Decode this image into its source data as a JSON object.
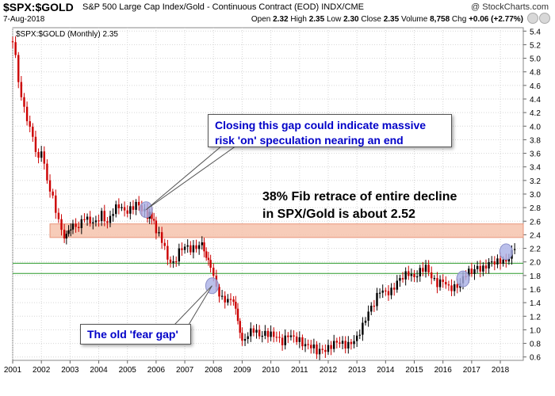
{
  "header": {
    "symbol": "$SPX:$GOLD",
    "description": "S&P 500 Large Cap Index/Gold - Continuous Contract (EOD)  INDX/CME",
    "date": "7-Aug-2018",
    "open_label": "Open",
    "open": "2.32",
    "high_label": "High",
    "high": "2.35",
    "low_label": "Low",
    "low": "2.30",
    "close_label": "Close",
    "close": "2.35",
    "volume_label": "Volume",
    "volume": "8,758",
    "chg_label": "Chg",
    "chg": "+0.06 (+2.77%)",
    "brand": "@ StockCharts.com",
    "icons": [
      "zoom-icon",
      "settings-icon"
    ]
  },
  "chart_data": {
    "type": "line",
    "legend": "$SPX:$GOLD (Monthly) 2.35",
    "ylim": [
      0.55,
      5.45
    ],
    "y_ticks": [
      "5.4",
      "5.2",
      "5.0",
      "4.8",
      "4.6",
      "4.4",
      "4.2",
      "4.0",
      "3.8",
      "3.6",
      "3.4",
      "3.2",
      "3.0",
      "2.8",
      "2.6",
      "2.4",
      "2.2",
      "2.0",
      "1.8",
      "1.6",
      "1.4",
      "1.2",
      "1.0",
      "0.8",
      "0.6"
    ],
    "x_ticks": [
      "2001",
      "2002",
      "2003",
      "2004",
      "2005",
      "2006",
      "2007",
      "2008",
      "2009",
      "2010",
      "2011",
      "2012",
      "2013",
      "2014",
      "2015",
      "2016",
      "2017",
      "2018"
    ],
    "x_range": [
      2001.0,
      2018.8
    ],
    "series": [
      {
        "x": [
          2001.0,
          2001.1,
          2001.2,
          2001.3,
          2001.4,
          2001.5,
          2001.7,
          2001.9,
          2002.0,
          2002.2,
          2002.4,
          2002.6,
          2002.8,
          2002.95,
          2003.1,
          2003.3,
          2003.5,
          2003.7,
          2003.9,
          2004.1,
          2004.3,
          2004.5,
          2004.7,
          2004.9,
          2005.1,
          2005.3,
          2005.5,
          2005.7,
          2005.85,
          2006.0,
          2006.2,
          2006.4,
          2006.6,
          2006.8,
          2007.0,
          2007.2,
          2007.4,
          2007.6,
          2007.75,
          2007.9,
          2008.1,
          2008.3,
          2008.5,
          2008.7,
          2008.85,
          2009.0,
          2009.2,
          2009.4,
          2009.6,
          2009.8,
          2010.0,
          2010.2,
          2010.4,
          2010.6,
          2010.8,
          2011.0,
          2011.2,
          2011.4,
          2011.6,
          2011.8,
          2012.0,
          2012.2,
          2012.4,
          2012.6,
          2012.8,
          2013.0,
          2013.2,
          2013.4,
          2013.6,
          2013.8,
          2014.0,
          2014.2,
          2014.4,
          2014.6,
          2014.8,
          2015.0,
          2015.2,
          2015.4,
          2015.6,
          2015.8,
          2016.0,
          2016.2,
          2016.4,
          2016.6,
          2016.8,
          2017.0,
          2017.2,
          2017.4,
          2017.6,
          2017.8,
          2018.0,
          2018.2,
          2018.4,
          2018.6
        ],
        "y": [
          5.25,
          5.05,
          4.65,
          4.5,
          4.25,
          4.1,
          3.8,
          3.5,
          3.7,
          3.2,
          2.9,
          2.6,
          2.4,
          2.45,
          2.5,
          2.5,
          2.7,
          2.6,
          2.55,
          2.7,
          2.6,
          2.75,
          2.8,
          2.75,
          2.8,
          2.85,
          2.75,
          2.7,
          2.65,
          2.45,
          2.3,
          2.05,
          2.0,
          2.15,
          2.2,
          2.2,
          2.25,
          2.25,
          2.1,
          1.95,
          1.65,
          1.45,
          1.4,
          1.45,
          1.1,
          0.82,
          0.9,
          1.0,
          0.95,
          0.95,
          0.9,
          0.9,
          0.85,
          0.92,
          0.85,
          0.85,
          0.8,
          0.75,
          0.66,
          0.72,
          0.75,
          0.78,
          0.8,
          0.8,
          0.82,
          0.85,
          1.05,
          1.3,
          1.4,
          1.55,
          1.55,
          1.6,
          1.7,
          1.75,
          1.85,
          1.8,
          1.85,
          1.9,
          1.8,
          1.7,
          1.7,
          1.6,
          1.65,
          1.7,
          1.8,
          1.85,
          1.95,
          1.9,
          1.95,
          2.0,
          2.05,
          2.0,
          2.1,
          2.35
        ]
      }
    ],
    "levels": {
      "horizontal_lines": [
        1.98,
        1.83
      ],
      "zone": [
        2.36,
        2.56
      ]
    },
    "markers": [
      {
        "x": 2005.65,
        "y": 2.77
      },
      {
        "x": 2007.95,
        "y": 1.65
      },
      {
        "x": 2016.7,
        "y": 1.75
      },
      {
        "x": 2018.2,
        "y": 2.15
      }
    ],
    "annotations": {
      "gap_callout": "Closing this gap could indicate massive\nrisk 'on' speculation nearing an end",
      "fib_note": "38% Fib retrace of entire decline\nin SPX/Gold is about 2.52",
      "fear_callout": "The old 'fear gap'"
    },
    "colors": {
      "up": "#000000",
      "down": "#cc0000",
      "zone_fill": "#f6c3ad",
      "zone_stroke": "#e8957a",
      "level_line": "#2a9a2a",
      "marker_fill": "#aab0e6"
    }
  }
}
